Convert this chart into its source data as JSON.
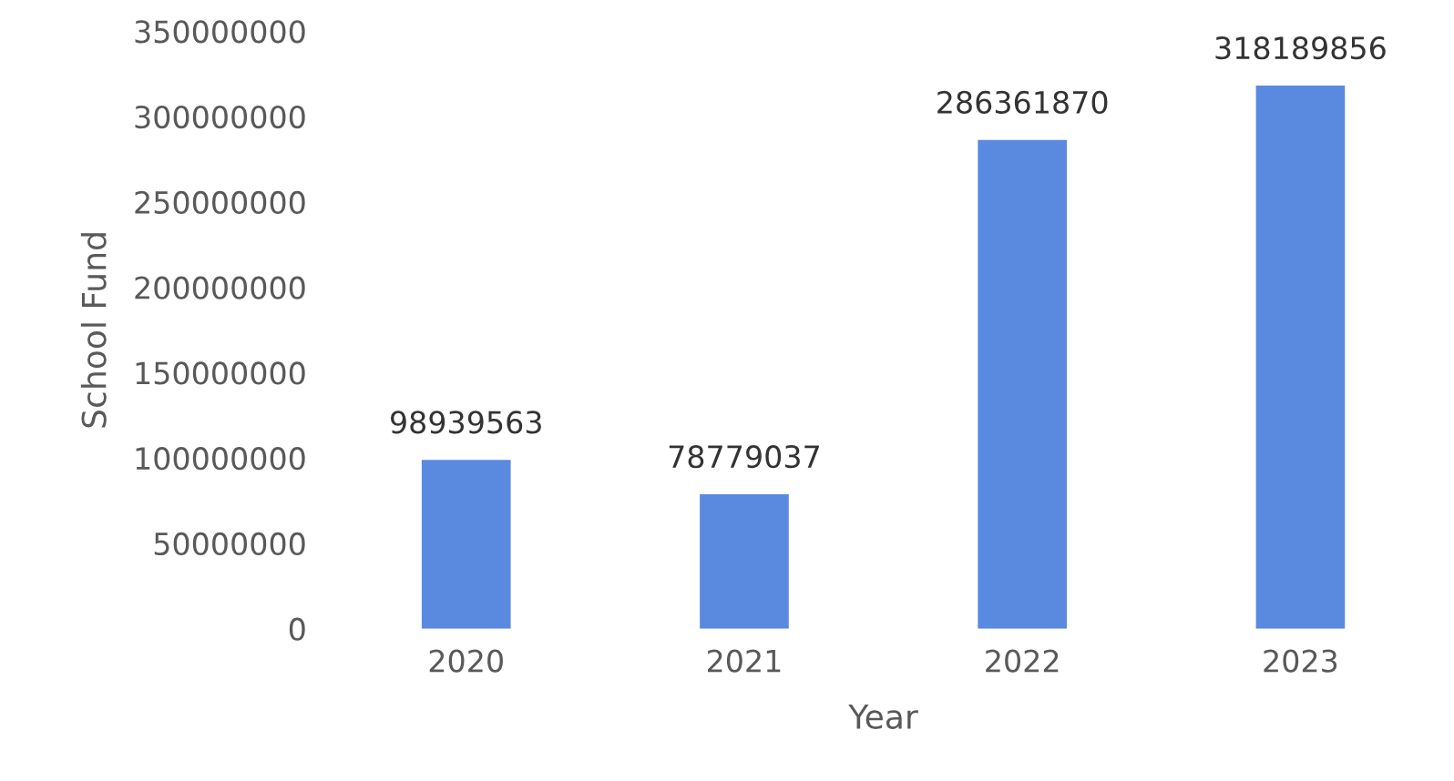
{
  "chart_data": {
    "type": "bar",
    "xlabel": "Year",
    "ylabel": "School Fund",
    "categories": [
      "2020",
      "2021",
      "2022",
      "2023"
    ],
    "values": [
      98939563,
      78779037,
      286361870,
      318189856
    ],
    "color": "#5a8ae0",
    "ylim": [
      0,
      350000000
    ],
    "yticks": [
      0,
      50000000,
      100000000,
      150000000,
      200000000,
      250000000,
      300000000,
      350000000
    ],
    "data_labels": true,
    "grid": false
  }
}
